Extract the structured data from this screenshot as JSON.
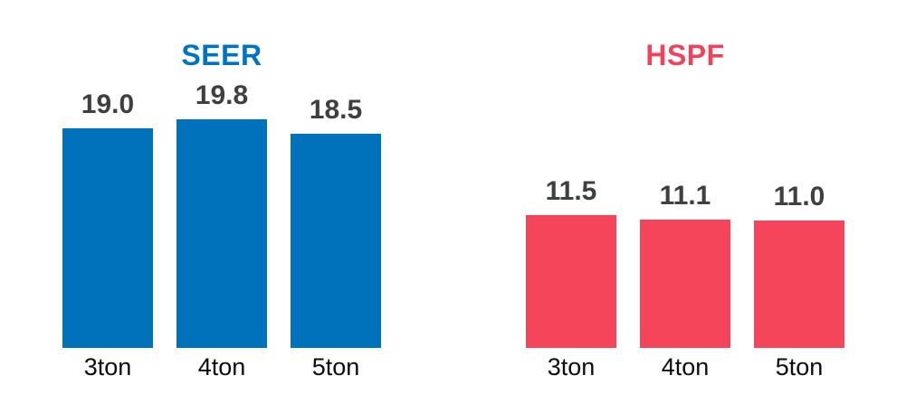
{
  "chart_data": [
    {
      "type": "bar",
      "title": "SEER",
      "categories": [
        "3ton",
        "4ton",
        "5ton"
      ],
      "values": [
        19.0,
        19.8,
        18.5
      ],
      "value_labels": [
        "19.0",
        "19.8",
        "18.5"
      ],
      "xlabel": "",
      "ylabel": "",
      "ylim": [
        0,
        23
      ],
      "grid": false,
      "legend": false,
      "axes_visible": false,
      "title_color": "#0073C2",
      "bar_color": "#0072BC",
      "value_label_color": "#3F3F3F",
      "category_label_color": "#0D0D0D"
    },
    {
      "type": "bar",
      "title": "HSPF",
      "categories": [
        "3ton",
        "4ton",
        "5ton"
      ],
      "values": [
        11.5,
        11.1,
        11.0
      ],
      "value_labels": [
        "11.5",
        "11.1",
        "11.0"
      ],
      "xlabel": "",
      "ylabel": "",
      "ylim": [
        0,
        23
      ],
      "grid": false,
      "legend": false,
      "axes_visible": false,
      "title_color": "#F0425A",
      "bar_color": "#F4455A",
      "value_label_color": "#3F3F3F",
      "category_label_color": "#0D0D0D"
    }
  ]
}
